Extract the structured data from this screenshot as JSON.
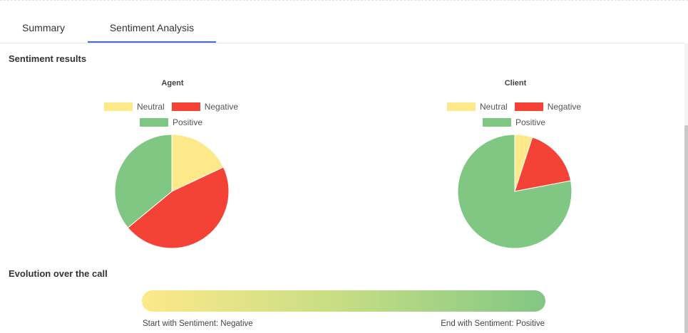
{
  "tabs": [
    {
      "label": "Summary"
    },
    {
      "label": "Sentiment Analysis"
    }
  ],
  "sentiment_results": {
    "title": "Sentiment results"
  },
  "legend": {
    "neutral": "Neutral",
    "negative": "Negative",
    "positive": "Positive"
  },
  "colors": {
    "neutral": "#fde98a",
    "negative": "#f44336",
    "positive": "#81c784",
    "accent": "#3f6ad8"
  },
  "chart_data": [
    {
      "type": "pie",
      "title": "Agent",
      "labels": [
        "Neutral",
        "Negative",
        "Positive"
      ],
      "values": [
        18,
        46,
        36
      ],
      "legend_position": "top"
    },
    {
      "type": "pie",
      "title": "Client",
      "labels": [
        "Neutral",
        "Negative",
        "Positive"
      ],
      "values": [
        5,
        17,
        78
      ],
      "legend_position": "top"
    }
  ],
  "evolution": {
    "title": "Evolution over the call",
    "start_text": "Start with Sentiment: Negative",
    "end_text": "End with Sentiment: Positive"
  }
}
